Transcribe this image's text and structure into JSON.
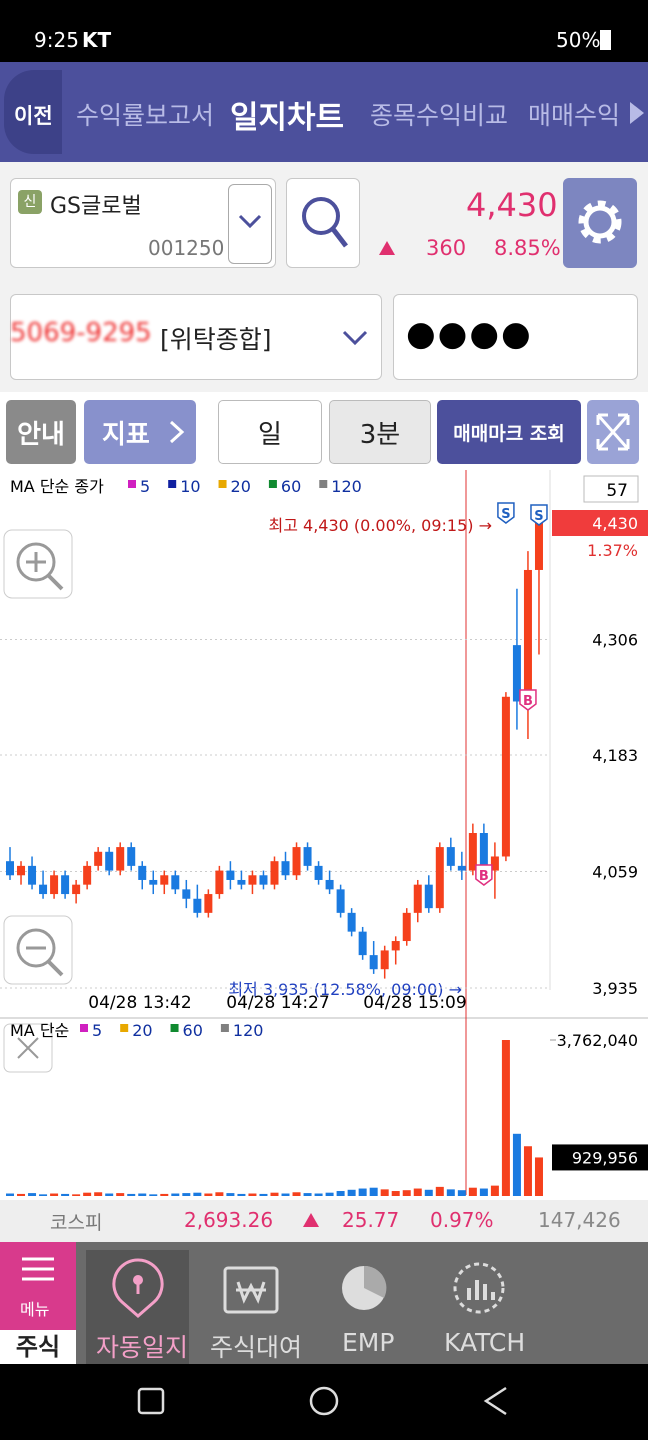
{
  "status_bar": {
    "time": "9:25",
    "carrier": "KT",
    "battery": "50%"
  },
  "tabs": {
    "back": "이전",
    "items": [
      "수익률보고서",
      "일지차트",
      "종목수익비교",
      "매매수익"
    ]
  },
  "stock": {
    "badge": "신",
    "name": "GS글로벌",
    "code": "001250",
    "price": "4,430",
    "change": "360",
    "change_rate": "8.85%"
  },
  "account": {
    "number": "5069-9295",
    "type": "[위탁종합]",
    "password": "●●●●"
  },
  "toolbar": {
    "guide": "안내",
    "indicator": "지표",
    "period": "일",
    "interval": "3분",
    "trade_marks": "매매마크 조회"
  },
  "chart": {
    "legend": {
      "title": "MA 단순 종가",
      "periods": [
        "5",
        "10",
        "20",
        "60",
        "120"
      ]
    },
    "count": "57",
    "high_label": "최고 4,430 (0.00%, 09:15) →",
    "low_label": "최저 3,935 (12.58%, 09:00) →",
    "change_pct": "1.37%",
    "time_labels": [
      "04/28 13:42",
      "04/28 14:27",
      "04/28 15:09"
    ],
    "ylim": [
      3935,
      4430
    ],
    "yticks": [
      {
        "value": 4430,
        "label": "4,430"
      },
      {
        "value": 4306,
        "label": "4,306"
      },
      {
        "value": 4183,
        "label": "4,183"
      },
      {
        "value": 4059,
        "label": "4,059"
      },
      {
        "value": 3935,
        "label": "3,935"
      }
    ],
    "candles": [
      [
        4070,
        4085,
        4050,
        4055
      ],
      [
        4055,
        4070,
        4045,
        4065
      ],
      [
        4065,
        4075,
        4040,
        4045
      ],
      [
        4045,
        4060,
        4030,
        4035
      ],
      [
        4035,
        4060,
        4030,
        4055
      ],
      [
        4055,
        4060,
        4030,
        4035
      ],
      [
        4035,
        4050,
        4025,
        4045
      ],
      [
        4045,
        4070,
        4040,
        4065
      ],
      [
        4065,
        4085,
        4060,
        4080
      ],
      [
        4080,
        4085,
        4055,
        4060
      ],
      [
        4060,
        4090,
        4055,
        4085
      ],
      [
        4085,
        4090,
        4060,
        4065
      ],
      [
        4065,
        4070,
        4040,
        4050
      ],
      [
        4050,
        4060,
        4035,
        4045
      ],
      [
        4045,
        4060,
        4035,
        4055
      ],
      [
        4055,
        4060,
        4035,
        4040
      ],
      [
        4040,
        4050,
        4020,
        4030
      ],
      [
        4030,
        4045,
        4010,
        4015
      ],
      [
        4015,
        4040,
        4010,
        4035
      ],
      [
        4035,
        4065,
        4030,
        4060
      ],
      [
        4060,
        4070,
        4040,
        4050
      ],
      [
        4050,
        4060,
        4040,
        4045
      ],
      [
        4045,
        4060,
        4035,
        4055
      ],
      [
        4055,
        4060,
        4040,
        4045
      ],
      [
        4045,
        4075,
        4040,
        4070
      ],
      [
        4070,
        4080,
        4050,
        4055
      ],
      [
        4055,
        4090,
        4050,
        4085
      ],
      [
        4085,
        4090,
        4060,
        4065
      ],
      [
        4065,
        4070,
        4045,
        4050
      ],
      [
        4050,
        4060,
        4035,
        4040
      ],
      [
        4040,
        4045,
        4010,
        4015
      ],
      [
        4015,
        4020,
        3990,
        3995
      ],
      [
        3995,
        4000,
        3965,
        3970
      ],
      [
        3970,
        3985,
        3950,
        3955
      ],
      [
        3955,
        3980,
        3945,
        3975
      ],
      [
        3975,
        3990,
        3960,
        3985
      ],
      [
        3985,
        4020,
        3980,
        4015
      ],
      [
        4015,
        4050,
        4005,
        4045
      ],
      [
        4045,
        4055,
        4015,
        4020
      ],
      [
        4020,
        4090,
        4015,
        4085
      ],
      [
        4085,
        4095,
        4060,
        4065
      ],
      [
        4065,
        4080,
        4050,
        4060
      ],
      [
        4060,
        4110,
        4055,
        4100
      ],
      [
        4100,
        4110,
        4060,
        4065
      ],
      [
        4060,
        4090,
        4030,
        4075
      ],
      [
        4075,
        4250,
        4070,
        4245
      ],
      [
        4300,
        4360,
        4210,
        4240
      ],
      [
        4240,
        4400,
        4200,
        4380
      ],
      [
        4380,
        4430,
        4290,
        4430
      ]
    ],
    "markers": [
      "S",
      "S",
      "B",
      "B"
    ]
  },
  "volume": {
    "legend": {
      "title": "MA 단순",
      "periods": [
        "5",
        "20",
        "60",
        "120"
      ]
    },
    "ylim": [
      0,
      3762040
    ],
    "yticks": [
      {
        "value": 3762040,
        "label": "3,762,040"
      }
    ],
    "current": {
      "value": 929956,
      "label": "929,956"
    },
    "values": [
      60000,
      50000,
      70000,
      40000,
      60000,
      50000,
      40000,
      80000,
      90000,
      60000,
      70000,
      50000,
      60000,
      40000,
      50000,
      60000,
      70000,
      80000,
      60000,
      90000,
      70000,
      50000,
      60000,
      50000,
      80000,
      60000,
      90000,
      70000,
      60000,
      80000,
      120000,
      150000,
      180000,
      200000,
      160000,
      120000,
      140000,
      180000,
      150000,
      220000,
      160000,
      140000,
      200000,
      180000,
      250000,
      3762040,
      1500000,
      1200000,
      929956
    ]
  },
  "market": {
    "index": "코스피",
    "value": "2,693.26",
    "change": "25.77",
    "change_rate": "0.97%",
    "volume": "147,426"
  },
  "bottom_nav": {
    "menu": "메뉴",
    "items": [
      "주식",
      "자동일지",
      "주식대여",
      "EMP",
      "KATCH"
    ]
  }
}
